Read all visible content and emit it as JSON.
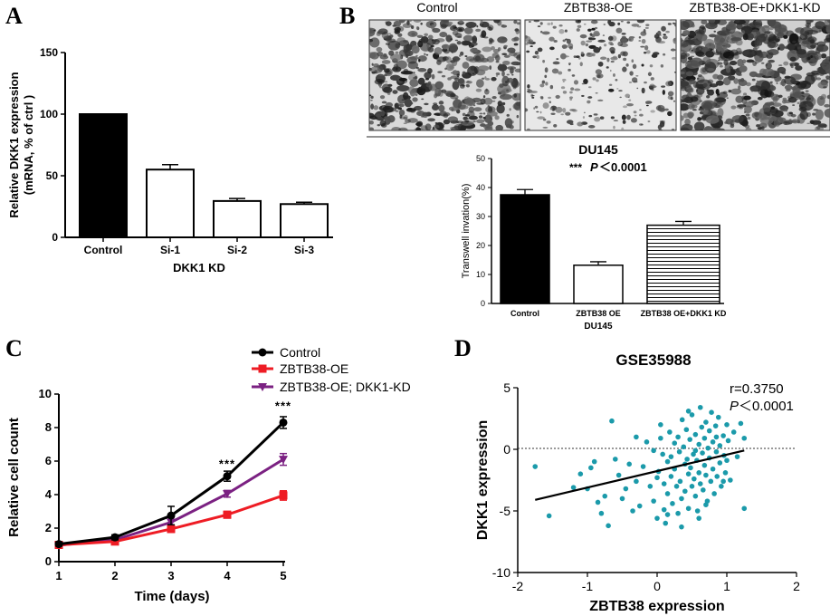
{
  "panels": {
    "A": "A",
    "B": "B",
    "C": "C",
    "D": "D"
  },
  "chart_data": [
    {
      "id": "A",
      "type": "bar",
      "title": "",
      "categories": [
        "Control",
        "Si-1",
        "Si-2",
        "Si-3"
      ],
      "values": [
        100,
        55,
        29.5,
        27
      ],
      "errors": [
        0,
        4,
        2,
        1.5
      ],
      "fills": [
        "solid",
        "white",
        "white",
        "white"
      ],
      "xlabel": "DKK1 KD",
      "ylabel_line1": "Relative DKK1 expression",
      "ylabel_line2": "(mRNA, % of ctrl )",
      "ylim": [
        0,
        150
      ],
      "yticks": [
        "0",
        "50",
        "100",
        "150"
      ]
    },
    {
      "id": "B",
      "type": "bar",
      "title": "DU145",
      "annotation_stars": "***",
      "annotation_p": "P",
      "annotation_rest": "＜0.0001",
      "categories": [
        "Control",
        "ZBTB38 OE",
        "ZBTB38 OE+DKK1 KD"
      ],
      "values": [
        37.5,
        13.2,
        27
      ],
      "errors": [
        1.8,
        1.2,
        1.3
      ],
      "fills": [
        "solid",
        "white",
        "hstripes"
      ],
      "xlabel": "DU145",
      "ylabel": "Transwell invation(%)",
      "ylim": [
        0,
        50
      ],
      "yticks": [
        "0",
        "10",
        "20",
        "30",
        "40",
        "50"
      ],
      "photo_labels": [
        "Control",
        "ZBTB38-OE",
        "ZBTB38-OE+DKK1-KD"
      ]
    },
    {
      "id": "C",
      "type": "line",
      "x": [
        1,
        2,
        3,
        4,
        5
      ],
      "xticks": [
        "1",
        "2",
        "3",
        "4",
        "5"
      ],
      "xlabel": "Time (days)",
      "ylabel": "Relative cell count",
      "ylim": [
        0,
        10
      ],
      "yticks": [
        "0",
        "2",
        "4",
        "6",
        "8",
        "10"
      ],
      "series": [
        {
          "name": "Control",
          "color": "#000000",
          "marker": "circle",
          "values": [
            1.05,
            1.45,
            2.75,
            5.1,
            8.3
          ],
          "errors": [
            0.12,
            0.15,
            0.55,
            0.3,
            0.35
          ]
        },
        {
          "name": "ZBTB38-OE",
          "color": "#ee1c24",
          "marker": "square",
          "values": [
            1.0,
            1.2,
            1.95,
            2.8,
            3.95
          ],
          "errors": [
            0.08,
            0.1,
            0.2,
            0.2,
            0.28
          ]
        },
        {
          "name": "ZBTB38-OE; DKK1-KD",
          "color": "#7b2182",
          "marker": "triangle-down",
          "values": [
            0.98,
            1.3,
            2.35,
            4.05,
            6.1
          ],
          "errors": [
            0.08,
            0.12,
            0.3,
            0.2,
            0.35
          ]
        }
      ],
      "annotations": [
        {
          "x": 4,
          "y": 5.6,
          "text": "***"
        },
        {
          "x": 5,
          "y": 9.05,
          "text": "***"
        }
      ]
    },
    {
      "id": "D",
      "type": "scatter",
      "title": "GSE35988",
      "xlabel": "ZBTB38 expression",
      "ylabel": "DKK1 expression",
      "xlim": [
        -2,
        2
      ],
      "ylim": [
        -10,
        5
      ],
      "xticks": [
        "-2",
        "-1",
        "0",
        "1",
        "2"
      ],
      "yticks": [
        "5",
        "0",
        "-5",
        "-10"
      ],
      "stat_r": "r=0.3750",
      "stat_p": "P",
      "stat_rest": "＜0.0001",
      "point_color": "#1b9aaa",
      "fit_line": {
        "x1": -1.75,
        "y1": -4.1,
        "x2": 1.25,
        "y2": -0.1
      },
      "points": [
        [
          -1.75,
          -1.4
        ],
        [
          -1.55,
          -5.4
        ],
        [
          -1.2,
          -3.1
        ],
        [
          -1.1,
          -2.0
        ],
        [
          -1.0,
          -3.2
        ],
        [
          -0.95,
          -1.5
        ],
        [
          -0.85,
          -4.3
        ],
        [
          -0.8,
          -5.2
        ],
        [
          -0.75,
          -3.8
        ],
        [
          -0.7,
          -6.2
        ],
        [
          -0.65,
          2.3
        ],
        [
          -0.6,
          -0.8
        ],
        [
          -0.55,
          -2.1
        ],
        [
          -0.5,
          -4.0
        ],
        [
          -0.45,
          -3.2
        ],
        [
          -0.4,
          -1.2
        ],
        [
          -0.35,
          -5.0
        ],
        [
          -0.3,
          -2.6
        ],
        [
          -0.25,
          -4.6
        ],
        [
          -0.2,
          -1.4
        ],
        [
          -0.15,
          0.6
        ],
        [
          -0.1,
          -3.0
        ],
        [
          -0.05,
          -4.2
        ],
        [
          0.0,
          -2.3
        ],
        [
          0.0,
          -5.6
        ],
        [
          0.02,
          -1.8
        ],
        [
          0.05,
          2.0
        ],
        [
          0.08,
          -0.4
        ],
        [
          0.1,
          -2.8
        ],
        [
          0.1,
          -4.9
        ],
        [
          0.12,
          -6.0
        ],
        [
          0.15,
          -1.0
        ],
        [
          0.15,
          -3.6
        ],
        [
          0.18,
          1.4
        ],
        [
          0.2,
          -0.6
        ],
        [
          0.2,
          -2.2
        ],
        [
          0.22,
          -4.4
        ],
        [
          0.25,
          0.5
        ],
        [
          0.25,
          -1.6
        ],
        [
          0.28,
          -3.0
        ],
        [
          0.3,
          -5.2
        ],
        [
          0.3,
          1.0
        ],
        [
          0.32,
          -0.2
        ],
        [
          0.33,
          -2.6
        ],
        [
          0.35,
          -4.0
        ],
        [
          0.36,
          2.4
        ],
        [
          0.38,
          0.2
        ],
        [
          0.4,
          -1.2
        ],
        [
          0.4,
          -3.4
        ],
        [
          0.42,
          1.6
        ],
        [
          0.43,
          -0.8
        ],
        [
          0.45,
          -2.0
        ],
        [
          0.45,
          -4.8
        ],
        [
          0.47,
          0.8
        ],
        [
          0.48,
          -1.5
        ],
        [
          0.5,
          -3.0
        ],
        [
          0.5,
          2.8
        ],
        [
          0.52,
          -0.4
        ],
        [
          0.53,
          -2.4
        ],
        [
          0.55,
          1.2
        ],
        [
          0.55,
          -3.8
        ],
        [
          0.57,
          -0.9
        ],
        [
          0.58,
          -5.0
        ],
        [
          0.6,
          0.4
        ],
        [
          0.6,
          -1.9
        ],
        [
          0.62,
          3.4
        ],
        [
          0.62,
          -2.8
        ],
        [
          0.64,
          1.8
        ],
        [
          0.65,
          -0.3
        ],
        [
          0.66,
          -3.3
        ],
        [
          0.68,
          0.9
        ],
        [
          0.68,
          -1.3
        ],
        [
          0.7,
          2.2
        ],
        [
          0.7,
          -2.1
        ],
        [
          0.72,
          -4.2
        ],
        [
          0.73,
          0.1
        ],
        [
          0.75,
          1.5
        ],
        [
          0.75,
          -0.7
        ],
        [
          0.77,
          -2.6
        ],
        [
          0.78,
          3.0
        ],
        [
          0.8,
          0.6
        ],
        [
          0.8,
          -1.6
        ],
        [
          0.82,
          -3.6
        ],
        [
          0.84,
          1.9
        ],
        [
          0.85,
          -0.2
        ],
        [
          0.86,
          -2.2
        ],
        [
          0.88,
          2.6
        ],
        [
          0.9,
          0.3
        ],
        [
          0.9,
          -1.1
        ],
        [
          0.92,
          -3.0
        ],
        [
          0.95,
          1.1
        ],
        [
          0.96,
          -0.5
        ],
        [
          0.98,
          -1.9
        ],
        [
          1.0,
          2.0
        ],
        [
          1.0,
          -0.9
        ],
        [
          1.02,
          0.7
        ],
        [
          1.05,
          -2.5
        ],
        [
          1.1,
          1.4
        ],
        [
          1.15,
          -0.6
        ],
        [
          1.2,
          2.1
        ],
        [
          1.25,
          -4.8
        ],
        [
          1.25,
          0.9
        ],
        [
          -0.05,
          -0.1
        ],
        [
          0.35,
          -6.3
        ],
        [
          0.6,
          -5.6
        ],
        [
          -0.3,
          1.0
        ],
        [
          0.15,
          -5.3
        ],
        [
          0.45,
          3.1
        ],
        [
          -0.9,
          -1.0
        ],
        [
          0.7,
          -4.5
        ],
        [
          0.05,
          0.9
        ],
        [
          0.85,
          1.0
        ],
        [
          0.55,
          -0.1
        ],
        [
          0.95,
          -2.6
        ]
      ]
    }
  ]
}
